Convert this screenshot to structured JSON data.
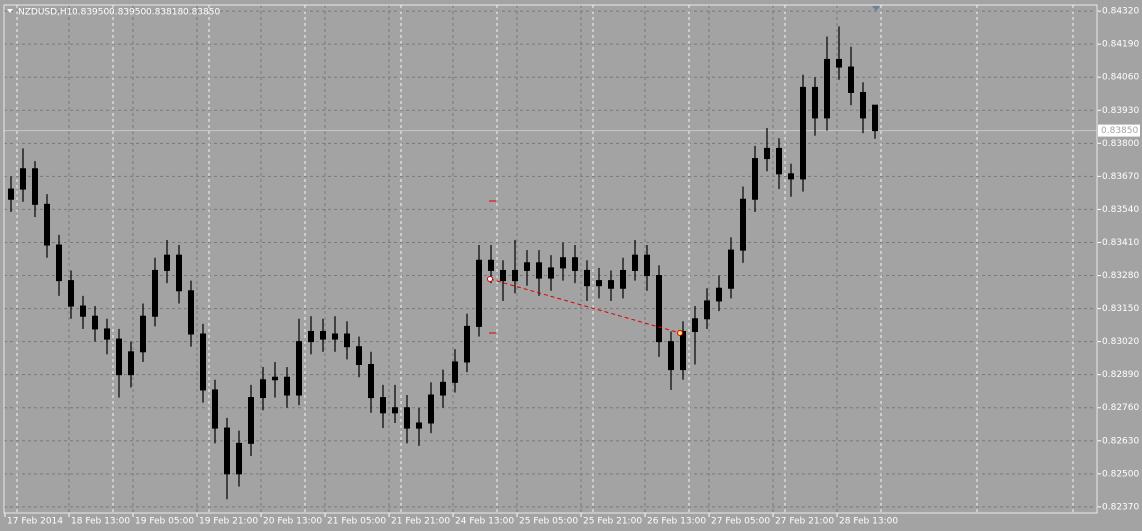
{
  "chart_data": {
    "type": "candlestick",
    "title": "NZDUSD,H1",
    "header_prices": [
      "0.83950",
      "0.83950",
      "0.83818",
      "0.83850"
    ],
    "series": [
      {
        "color": "#000000",
        "open": [
          0.8358,
          0.8362,
          0.837,
          0.8356,
          0.834,
          0.8326,
          0.8316,
          0.8312,
          0.8307,
          0.8303,
          0.8289,
          0.8298,
          0.8312,
          0.833,
          0.8336,
          0.8322,
          0.8305,
          0.8283,
          0.8268,
          0.825,
          0.8262,
          0.828,
          0.8287,
          0.8288,
          0.8281,
          0.8302,
          0.8306,
          0.8303,
          0.8305,
          0.83,
          0.8293,
          0.828,
          0.8274,
          0.8276,
          0.8268,
          0.827,
          0.8281,
          0.8286,
          0.8294,
          0.8308,
          0.8334,
          0.833,
          0.8326,
          0.833,
          0.8333,
          0.8327,
          0.8331,
          0.8335,
          0.833,
          0.8324,
          0.8326,
          0.8323,
          0.833,
          0.8336,
          0.8328,
          0.8302,
          0.8291,
          0.8306,
          0.8311,
          0.8318,
          0.8323,
          0.8338,
          0.8358,
          0.8374,
          0.8378,
          0.8368,
          0.8366,
          0.8402,
          0.839,
          0.8413,
          0.841,
          0.84,
          0.8395
        ],
        "high": [
          0.8367,
          0.8378,
          0.8373,
          0.836,
          0.8344,
          0.833,
          0.832,
          0.8316,
          0.8311,
          0.8307,
          0.8302,
          0.8317,
          0.8335,
          0.8342,
          0.834,
          0.8326,
          0.8309,
          0.8287,
          0.8272,
          0.8267,
          0.8285,
          0.8292,
          0.8294,
          0.8292,
          0.8311,
          0.8312,
          0.8311,
          0.8312,
          0.831,
          0.8304,
          0.8298,
          0.8285,
          0.8285,
          0.8281,
          0.8276,
          0.8286,
          0.8291,
          0.8299,
          0.8313,
          0.834,
          0.834,
          0.8334,
          0.8342,
          0.8338,
          0.8338,
          0.8336,
          0.8341,
          0.834,
          0.8334,
          0.8331,
          0.833,
          0.8335,
          0.8342,
          0.834,
          0.8332,
          0.8306,
          0.831,
          0.8316,
          0.8323,
          0.8328,
          0.8343,
          0.8363,
          0.8379,
          0.8386,
          0.8382,
          0.8372,
          0.8407,
          0.8406,
          0.8422,
          0.8426,
          0.8418,
          0.8404,
          0.8395
        ],
        "low": [
          0.8353,
          0.8357,
          0.8351,
          0.8335,
          0.832,
          0.8311,
          0.8307,
          0.8302,
          0.8297,
          0.828,
          0.8284,
          0.8294,
          0.8308,
          0.8325,
          0.8317,
          0.83,
          0.8278,
          0.8262,
          0.824,
          0.8245,
          0.8257,
          0.8275,
          0.828,
          0.8276,
          0.8277,
          0.8297,
          0.8298,
          0.8298,
          0.8295,
          0.8288,
          0.8274,
          0.8268,
          0.827,
          0.8262,
          0.8261,
          0.8266,
          0.8276,
          0.8282,
          0.829,
          0.8304,
          0.8325,
          0.8318,
          0.8321,
          0.8324,
          0.832,
          0.8322,
          0.8326,
          0.8325,
          0.8318,
          0.8319,
          0.8318,
          0.8319,
          0.8326,
          0.8322,
          0.8296,
          0.8283,
          0.8287,
          0.8293,
          0.8307,
          0.8314,
          0.8319,
          0.8333,
          0.8353,
          0.8369,
          0.8362,
          0.8359,
          0.8361,
          0.8383,
          0.8385,
          0.8405,
          0.8395,
          0.8384,
          0.83818
        ],
        "close": [
          0.8362,
          0.837,
          0.8356,
          0.834,
          0.8326,
          0.8316,
          0.8312,
          0.8307,
          0.8303,
          0.8289,
          0.8298,
          0.8312,
          0.833,
          0.8336,
          0.8322,
          0.8305,
          0.8283,
          0.8268,
          0.825,
          0.8262,
          0.828,
          0.8287,
          0.8288,
          0.8281,
          0.8302,
          0.8306,
          0.8303,
          0.8305,
          0.83,
          0.8293,
          0.828,
          0.8274,
          0.8276,
          0.8268,
          0.827,
          0.8281,
          0.8286,
          0.8294,
          0.8308,
          0.8334,
          0.833,
          0.8326,
          0.833,
          0.8333,
          0.8327,
          0.8331,
          0.8335,
          0.833,
          0.8324,
          0.8326,
          0.8323,
          0.833,
          0.8336,
          0.8328,
          0.8302,
          0.8291,
          0.8306,
          0.8311,
          0.8318,
          0.8323,
          0.8338,
          0.8358,
          0.8374,
          0.8378,
          0.8368,
          0.8366,
          0.8402,
          0.839,
          0.8413,
          0.841,
          0.84,
          0.839,
          0.8385
        ]
      }
    ],
    "x_labels": [
      "17 Feb 2014",
      "18 Feb 13:00",
      "19 Feb 05:00",
      "19 Feb 21:00",
      "20 Feb 13:00",
      "21 Feb 05:00",
      "21 Feb 21:00",
      "24 Feb 13:00",
      "25 Feb 05:00",
      "25 Feb 21:00",
      "26 Feb 13:00",
      "27 Feb 05:00",
      "27 Feb 21:00",
      "28 Feb 13:00"
    ],
    "ylim": [
      0.82346,
      0.84344
    ],
    "yticks": [
      {
        "value": 0.8432,
        "label": "0.84320"
      },
      {
        "value": 0.8419,
        "label": "0.84190"
      },
      {
        "value": 0.8406,
        "label": "0.84060"
      },
      {
        "value": 0.8393,
        "label": "0.83930"
      },
      {
        "value": 0.838,
        "label": "0.83800"
      },
      {
        "value": 0.8367,
        "label": "0.83670"
      },
      {
        "value": 0.8354,
        "label": "0.83540"
      },
      {
        "value": 0.8341,
        "label": "0.83410"
      },
      {
        "value": 0.8328,
        "label": "0.83280"
      },
      {
        "value": 0.8315,
        "label": "0.83150"
      },
      {
        "value": 0.8302,
        "label": "0.83020"
      },
      {
        "value": 0.8289,
        "label": "0.82890"
      },
      {
        "value": 0.8276,
        "label": "0.82760"
      },
      {
        "value": 0.8263,
        "label": "0.82630"
      },
      {
        "value": 0.825,
        "label": "0.82500"
      },
      {
        "value": 0.8237,
        "label": "0.82370"
      }
    ],
    "current_price": {
      "value": 0.8385,
      "label": "0.83850"
    },
    "grid": true,
    "background": "#a3a3a3"
  }
}
